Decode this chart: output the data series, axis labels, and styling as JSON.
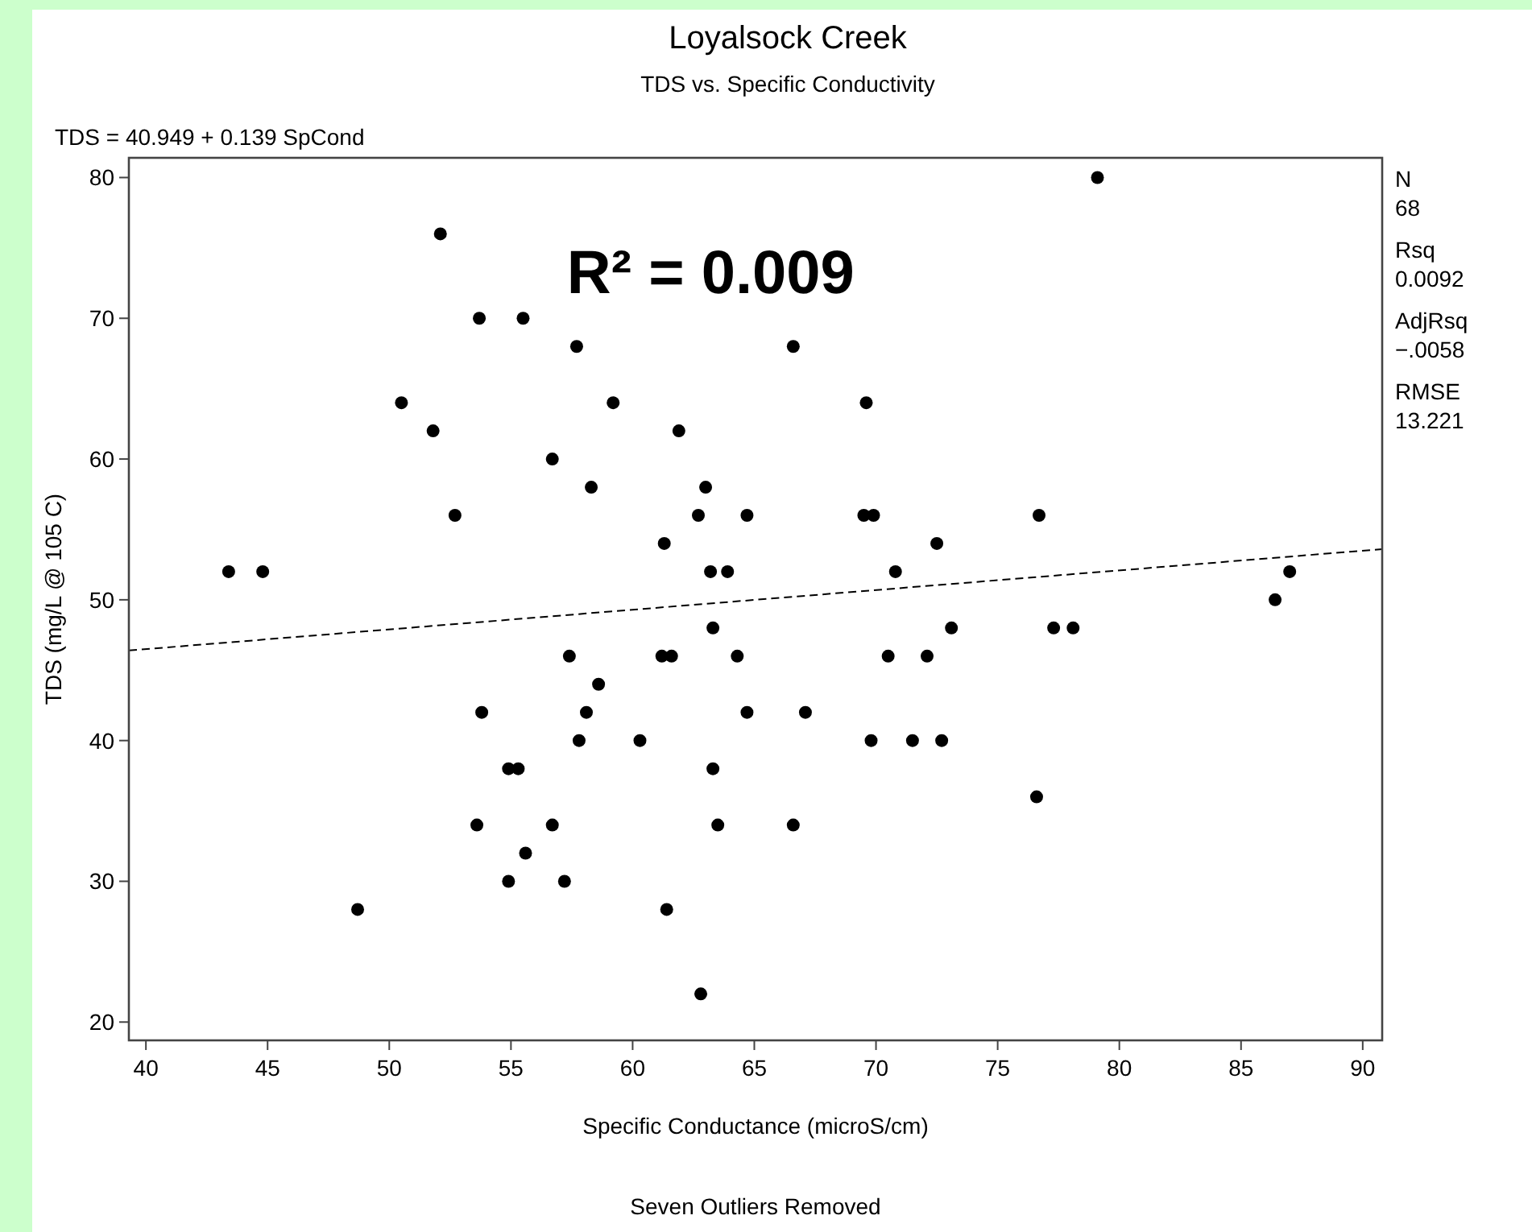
{
  "chart_data": {
    "type": "scatter",
    "title": "Loyalsock Creek",
    "subtitle": "TDS vs. Specific Conductivity",
    "xlabel": "Specific Conductance (microS/cm)",
    "ylabel": "TDS (mg/L @ 105 C)",
    "xlim": [
      39.3,
      90.8
    ],
    "ylim": [
      18.7,
      81.4
    ],
    "xticks": [
      40,
      45,
      50,
      55,
      60,
      65,
      70,
      75,
      80,
      85,
      90
    ],
    "yticks": [
      20,
      30,
      40,
      50,
      60,
      70,
      80
    ],
    "grid": false,
    "series": [
      {
        "color": "#000000",
        "marker": "circle",
        "x": [
          52.1,
          53.7,
          55.5,
          57.7,
          50.5,
          59.2,
          51.8,
          61.9,
          56.7,
          58.3,
          52.7,
          61.3,
          43.4,
          44.8,
          79.1,
          66.6,
          69.6,
          63.0,
          62.7,
          64.7,
          69.5,
          69.9,
          76.7,
          72.5,
          63.2,
          63.9,
          70.8,
          57.4,
          61.2,
          61.6,
          58.6,
          53.8,
          58.1,
          57.8,
          60.3,
          54.9,
          55.3,
          53.6,
          56.7,
          55.6,
          54.9,
          57.2,
          48.7,
          61.4,
          63.3,
          73.1,
          77.3,
          78.1,
          64.3,
          70.5,
          72.1,
          64.7,
          67.1,
          69.8,
          71.5,
          72.7,
          63.3,
          76.6,
          63.5,
          66.6,
          62.8,
          86.4,
          87.0
        ],
        "values": [
          76,
          70,
          70,
          68,
          64,
          64,
          62,
          62,
          60,
          58,
          56,
          54,
          52,
          52,
          80,
          68,
          64,
          58,
          56,
          56,
          56,
          56,
          56,
          54,
          52,
          52,
          52,
          46,
          46,
          46,
          44,
          42,
          42,
          40,
          40,
          38,
          38,
          34,
          34,
          32,
          30,
          30,
          28,
          28,
          48,
          48,
          48,
          48,
          46,
          46,
          46,
          42,
          42,
          40,
          40,
          40,
          38,
          36,
          34,
          34,
          22,
          50,
          52
        ]
      },
      {
        "type": "line",
        "color": "#000000",
        "line_style": "dashed",
        "x": [
          39.3,
          90.8
        ],
        "values": [
          46.4,
          53.6
        ]
      }
    ],
    "annotations": [
      "TDS =  40.949  + 0.139 SpCond",
      "R² = 0.009",
      "N",
      "68",
      "Rsq",
      "0.0092",
      "AdjRsq",
      "−.0058",
      "RMSE",
      "13.221",
      "Seven Outliers Removed"
    ]
  }
}
